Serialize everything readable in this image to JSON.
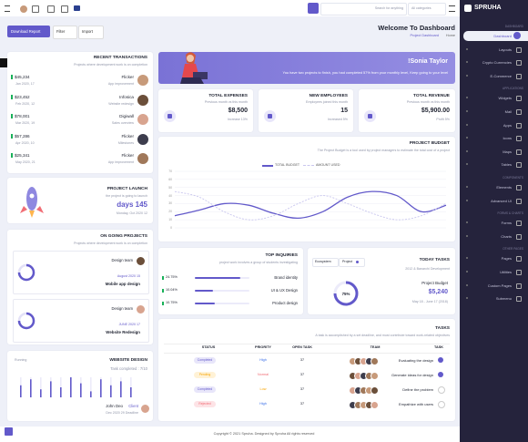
{
  "header": {
    "search_placeholder": "Search for anything",
    "category": "All categories",
    "brand": "SPRUHA"
  },
  "toolbar": {
    "buttons": [
      "Download Report",
      "Filter",
      "Import"
    ],
    "title": "Welcome To Dashboard",
    "breadcrumb": [
      "Project Dashboard",
      "Home"
    ]
  },
  "sidebar": {
    "groups": [
      {
        "title": "DASHBOARD",
        "items": [
          "Dashboard",
          "Layouts",
          "Crypto Currencies",
          "E-Commerce"
        ]
      },
      {
        "title": "APPLICATIONS",
        "items": [
          "Widgets",
          "Mail",
          "Apps",
          "Icons",
          "Maps",
          "Tables"
        ]
      },
      {
        "title": "COMPONENTS",
        "items": [
          "Elements",
          "Advanced UI"
        ]
      },
      {
        "title": "FORMS & CHARTS",
        "items": [
          "Forms",
          "Charts"
        ]
      },
      {
        "title": "OTHER PAGES",
        "items": [
          "Pages",
          "Utilities",
          "Custom Pages",
          "Submenu"
        ]
      }
    ]
  },
  "transactions": {
    "title": "RECENT TRANSACTIONS",
    "subtitle": "Projects where development work is on completion",
    "rows": [
      {
        "amount": "$45,234",
        "date": "Jan 2020, 17",
        "name": "Flicker",
        "detail": "App improvement"
      },
      {
        "amount": "$23,452",
        "date": "Feb 2020, 12",
        "name": "Infosica",
        "detail": "Website redesign"
      },
      {
        "amount": "$78,001",
        "date": "Mar 2020, 19",
        "name": "Digiwall",
        "detail": "Sales overview"
      },
      {
        "amount": "$57,286",
        "date": "Apr 2020, 10",
        "name": "Flicker",
        "detail": "Milestones"
      },
      {
        "amount": "$25,341",
        "date": "May 2020, 21",
        "name": "Flicker",
        "detail": "App improvement"
      }
    ]
  },
  "launch": {
    "title": "PROJECT LAUNCH",
    "subtitle": "the project is going to launch",
    "days": "days 145",
    "date": "Monday, Oct 2020 12"
  },
  "ongoing": {
    "title": "ON GOING PROJECTS",
    "subtitle": "Projects where development work is on completion",
    "projects": [
      {
        "team": "Design team",
        "date": "August 2020 15",
        "name": "Mobile app design"
      },
      {
        "team": "Design team",
        "date": "JUNE 2020 17",
        "name": "Website Redesign"
      }
    ]
  },
  "website": {
    "status": "Running",
    "title": "WEBSITE DESIGN",
    "subtitle": "Task completed : 7/10",
    "bars": [
      6,
      9,
      4,
      8,
      5,
      10,
      7,
      3,
      9,
      6,
      8,
      5
    ],
    "ylim": [
      0,
      10
    ],
    "person": "John Deo",
    "role": "Client",
    "deadline": "Dec 2020 29 Deadline"
  },
  "banner": {
    "title": "!Sonia Taylor",
    "message": "You have two projects to finish, you had completed 57% from your monthly level, Keep going to your level"
  },
  "stats": [
    {
      "title": "TOTAL EXPENSES",
      "subtitle": "Previous month vs this month",
      "value": "$8,500",
      "change": "Increase 13%"
    },
    {
      "title": "NEW EMPLOYEES",
      "subtitle": "Employees joined this month",
      "value": "15",
      "change": "Increased 5%"
    },
    {
      "title": "TOTAL REVENUE",
      "subtitle": "Previous month vs this month",
      "value": "$5,900.00",
      "change": "Profit 5%"
    }
  ],
  "budget": {
    "title": "PROJECT BUDGET",
    "subtitle": "The Project Budget is a tool used by project managers to estimate the total cost of a project",
    "ylim": [
      0,
      70
    ],
    "yticks": [
      0,
      10,
      20,
      30,
      40,
      50,
      60,
      70
    ],
    "series": [
      {
        "name": "TOTAL BUDGET",
        "color": "#6259ca",
        "values": [
          15,
          22,
          30,
          28,
          18,
          12,
          20,
          38,
          45,
          40,
          20,
          28
        ]
      },
      {
        "name": "AMOUNT USED",
        "color": "#c9c6ee",
        "values": [
          45,
          38,
          20,
          10,
          15,
          30,
          40,
          30,
          18,
          10,
          15,
          30
        ]
      }
    ]
  },
  "inquiries": {
    "title": "TOP INQUIRIES",
    "subtitle": "project work involves a group of students investigating",
    "xlim": [
      0,
      30
    ],
    "rows": [
      {
        "value": 24.75,
        "value_label": "24.75%",
        "name": "Brand identity"
      },
      {
        "value": 10.04,
        "value_label": "10.04%",
        "name": "UI & UX Design"
      },
      {
        "value": 10.75,
        "value_label": "10.75%",
        "name": "Product design"
      }
    ]
  },
  "today": {
    "title": "TODAY TASKS",
    "tabs": [
      "Ecosystem",
      "Project"
    ],
    "subtitle": "2012 & Banarchi Development",
    "ring": "75%",
    "label": "Project Budget",
    "amount": "$5,240",
    "date": "May 18 - June 17 (2018)"
  },
  "tasks": {
    "title": "TASKS",
    "subtitle": "A task is accomplished by a set deadline, and must contribute toward work-related objectives",
    "columns": [
      "STATUS",
      "PRIORITY",
      "OPEN TASK",
      "TEAM",
      "TASK"
    ],
    "rows": [
      [
        "Completed",
        "High",
        "37",
        "Evaluating the design"
      ],
      [
        "Pending",
        "Normal",
        "37",
        "Generate ideas for design"
      ],
      [
        "Completed",
        "Low",
        "37",
        "Define the problem"
      ],
      [
        "Rejected",
        "High",
        "37",
        "Empathize with users"
      ]
    ]
  },
  "footer": "Copyright © 2021 Spruha. Designed by Spruha All rights reserved"
}
